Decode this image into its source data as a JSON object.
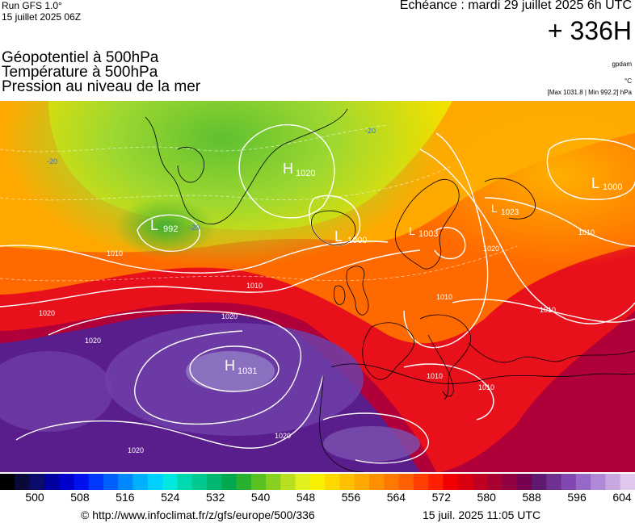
{
  "header": {
    "run": "Run GFS 1.0°",
    "run_date": "15 juillet 2025 06Z",
    "valid_time": "Echéance : mardi 29 juillet 2025 6h UTC",
    "lead": "+ 336H"
  },
  "fields": [
    "Géopotentiel à 500hPa",
    "Température à 500hPa",
    "Pression au niveau de la mer"
  ],
  "units": {
    "geopotential": "gpdam",
    "temperature": "°C"
  },
  "pressure_extremes": "[Max 1031.8 | Min 992.2] hPa",
  "map": {
    "pressure_centers": [
      {
        "type": "L",
        "value": "992"
      },
      {
        "type": "H",
        "value": "1031"
      },
      {
        "type": "H",
        "value": "1020"
      },
      {
        "type": "L",
        "value": "1000"
      },
      {
        "type": "L",
        "value": "1003"
      },
      {
        "type": "L",
        "value": "1000"
      },
      {
        "type": "L",
        "value": "1023"
      }
    ],
    "isobar_labels": [
      "1010",
      "1010",
      "1020",
      "1020",
      "1020",
      "1020",
      "1020",
      "1010",
      "1010",
      "1010",
      "1020",
      "1010",
      "1010"
    ],
    "temp_labels": [
      "-20",
      "-20",
      "-20"
    ]
  },
  "colorbar": {
    "colors": [
      "#000000",
      "#0a0a3a",
      "#0b0b6b",
      "#0000a0",
      "#0000cc",
      "#0010ee",
      "#0038ff",
      "#0060ff",
      "#0088ff",
      "#00b0ff",
      "#00d0ff",
      "#00e8e0",
      "#00d8b0",
      "#00c890",
      "#00b870",
      "#00a850",
      "#28b030",
      "#58c020",
      "#88d020",
      "#b8e020",
      "#e0f020",
      "#f8f000",
      "#ffd800",
      "#ffc000",
      "#ffa800",
      "#ff9000",
      "#ff7800",
      "#ff6000",
      "#ff4000",
      "#ff2000",
      "#f00000",
      "#d80010",
      "#c00020",
      "#a80030",
      "#900040",
      "#780050",
      "#601870",
      "#703090",
      "#8048b0",
      "#9868c8",
      "#b088d8",
      "#c8a8e0",
      "#e0c8ec"
    ],
    "ticks": [
      "500",
      "508",
      "516",
      "524",
      "532",
      "540",
      "548",
      "556",
      "564",
      "572",
      "580",
      "588",
      "596",
      "604"
    ]
  },
  "footer": {
    "url": "© http://www.infoclimat.fr/z/gfs/europe/500/336",
    "timestamp": "15 juil. 2025 11:05 UTC"
  }
}
